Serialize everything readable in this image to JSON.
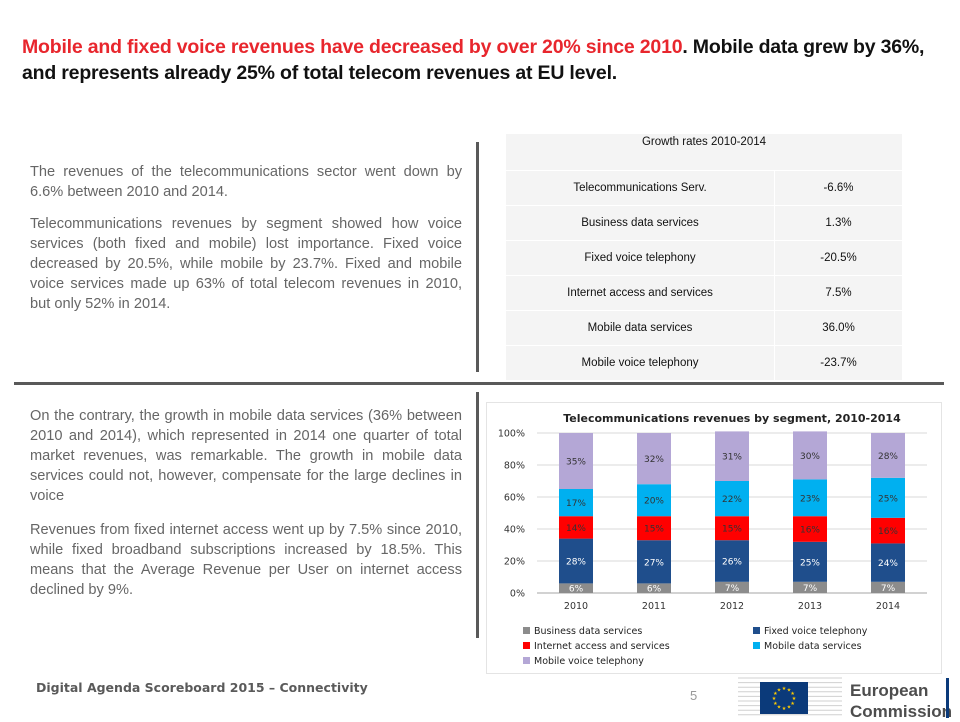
{
  "title": {
    "red": "Mobile and fixed voice revenues have decreased by over 20% since 2010",
    "rest": ". Mobile data grew by 36%, and represents already 25% of total telecom revenues at EU level."
  },
  "paragraphs": {
    "p1": "The revenues of the telecommunications sector went down by 6.6% between 2010 and 2014.",
    "p2": "Telecommunications revenues by segment showed how voice services (both fixed and mobile) lost importance.  Fixed voice decreased by 20.5%, while mobile by 23.7%. Fixed and mobile voice services made up 63% of total telecom revenues in 2010, but only 52% in 2014.",
    "p3": "On the contrary, the growth in mobile data services (36% between 2010 and 2014), which represented in 2014 one quarter of total market revenues, was remarkable. The growth in mobile data services could not, however, compensate for the large declines in voice",
    "p4": "Revenues from fixed internet access went up by 7.5% since 2010, while fixed broadband subscriptions increased by 18.5%. This means that the Average Revenue per User on internet access declined by 9%."
  },
  "growth_table": {
    "header": "Growth rates 2010-2014",
    "rows": [
      {
        "label": "Telecommunications Serv.",
        "value": "-6.6%"
      },
      {
        "label": "Business data services",
        "value": "1.3%"
      },
      {
        "label": "Fixed voice telephony",
        "value": "-20.5%"
      },
      {
        "label": "Internet access and services",
        "value": "7.5%"
      },
      {
        "label": "Mobile data services",
        "value": "36.0%"
      },
      {
        "label": "Mobile voice telephony",
        "value": "-23.7%"
      }
    ]
  },
  "chart_data": {
    "type": "bar",
    "stacked": true,
    "title": "Telecommunications   revenues by segment, 2010-2014",
    "categories": [
      "2010",
      "2011",
      "2012",
      "2013",
      "2014"
    ],
    "ylim": [
      0,
      100
    ],
    "yticks": [
      "0%",
      "20%",
      "40%",
      "60%",
      "80%",
      "100%"
    ],
    "grid": true,
    "legend_position": "bottom",
    "series": [
      {
        "name": "Business data services",
        "color": "#8c8c8c",
        "text_color": "#ffffff",
        "values": [
          6,
          6,
          7,
          7,
          7
        ],
        "labels": [
          "6%",
          "6%",
          "7%",
          "7%",
          "7%"
        ]
      },
      {
        "name": "Fixed voice telephony",
        "color": "#1f4e8c",
        "text_color": "#ffffff",
        "values": [
          28,
          27,
          26,
          25,
          24
        ],
        "labels": [
          "28%",
          "27%",
          "26%",
          "25%",
          "24%"
        ]
      },
      {
        "name": "Internet access and services",
        "color": "#ff0000",
        "text_color": "#333333",
        "values": [
          14,
          15,
          15,
          16,
          16
        ],
        "labels": [
          "14%",
          "15%",
          "15%",
          "16%",
          "16%"
        ]
      },
      {
        "name": "Mobile data services",
        "color": "#00b0f0",
        "text_color": "#333333",
        "values": [
          17,
          20,
          22,
          23,
          25
        ],
        "labels": [
          "17%",
          "20%",
          "22%",
          "23%",
          "25%"
        ]
      },
      {
        "name": "Mobile voice telephony",
        "color": "#b4a7d6",
        "text_color": "#333333",
        "values": [
          35,
          32,
          31,
          30,
          28
        ],
        "labels": [
          "35%",
          "32%",
          "31%",
          "30%",
          "28%"
        ]
      }
    ]
  },
  "footer": {
    "text": "Digital Agenda Scoreboard 2015 – Connectivity",
    "page": "5"
  },
  "logo": {
    "line1": "European",
    "line2": "Commission",
    "eu_blue": "#0b3a7a",
    "eu_yellow": "#ffcc00"
  }
}
